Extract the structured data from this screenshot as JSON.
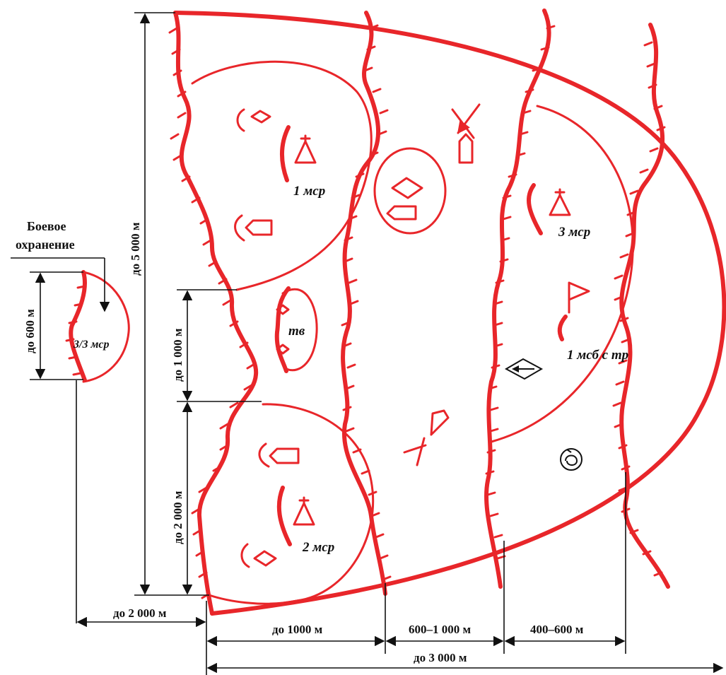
{
  "labels": {
    "guard_title_line1": "Боевое",
    "guard_title_line2": "охранение",
    "guard_unit": "3/3 мср",
    "unit_1": "1 мср",
    "unit_2": "2 мср",
    "unit_3": "3 мср",
    "tank_platoon": "тв",
    "battalion": "1 мсб с тр"
  },
  "dimensions": {
    "guard_depth": "до 600 м",
    "front_total": "до 5 000 м",
    "gap_1000": "до 1 000 м",
    "front_2000": "до 2 000 м",
    "guard_distance": "до 2 000 м",
    "depth_1000": "до 1000 м",
    "depth_600_1000": "600–1 000 м",
    "depth_400_600": "400–600 м",
    "depth_total": "до 3 000 м"
  },
  "colors": {
    "tactical_red": "#e8262a",
    "dimension_black": "#111111"
  }
}
